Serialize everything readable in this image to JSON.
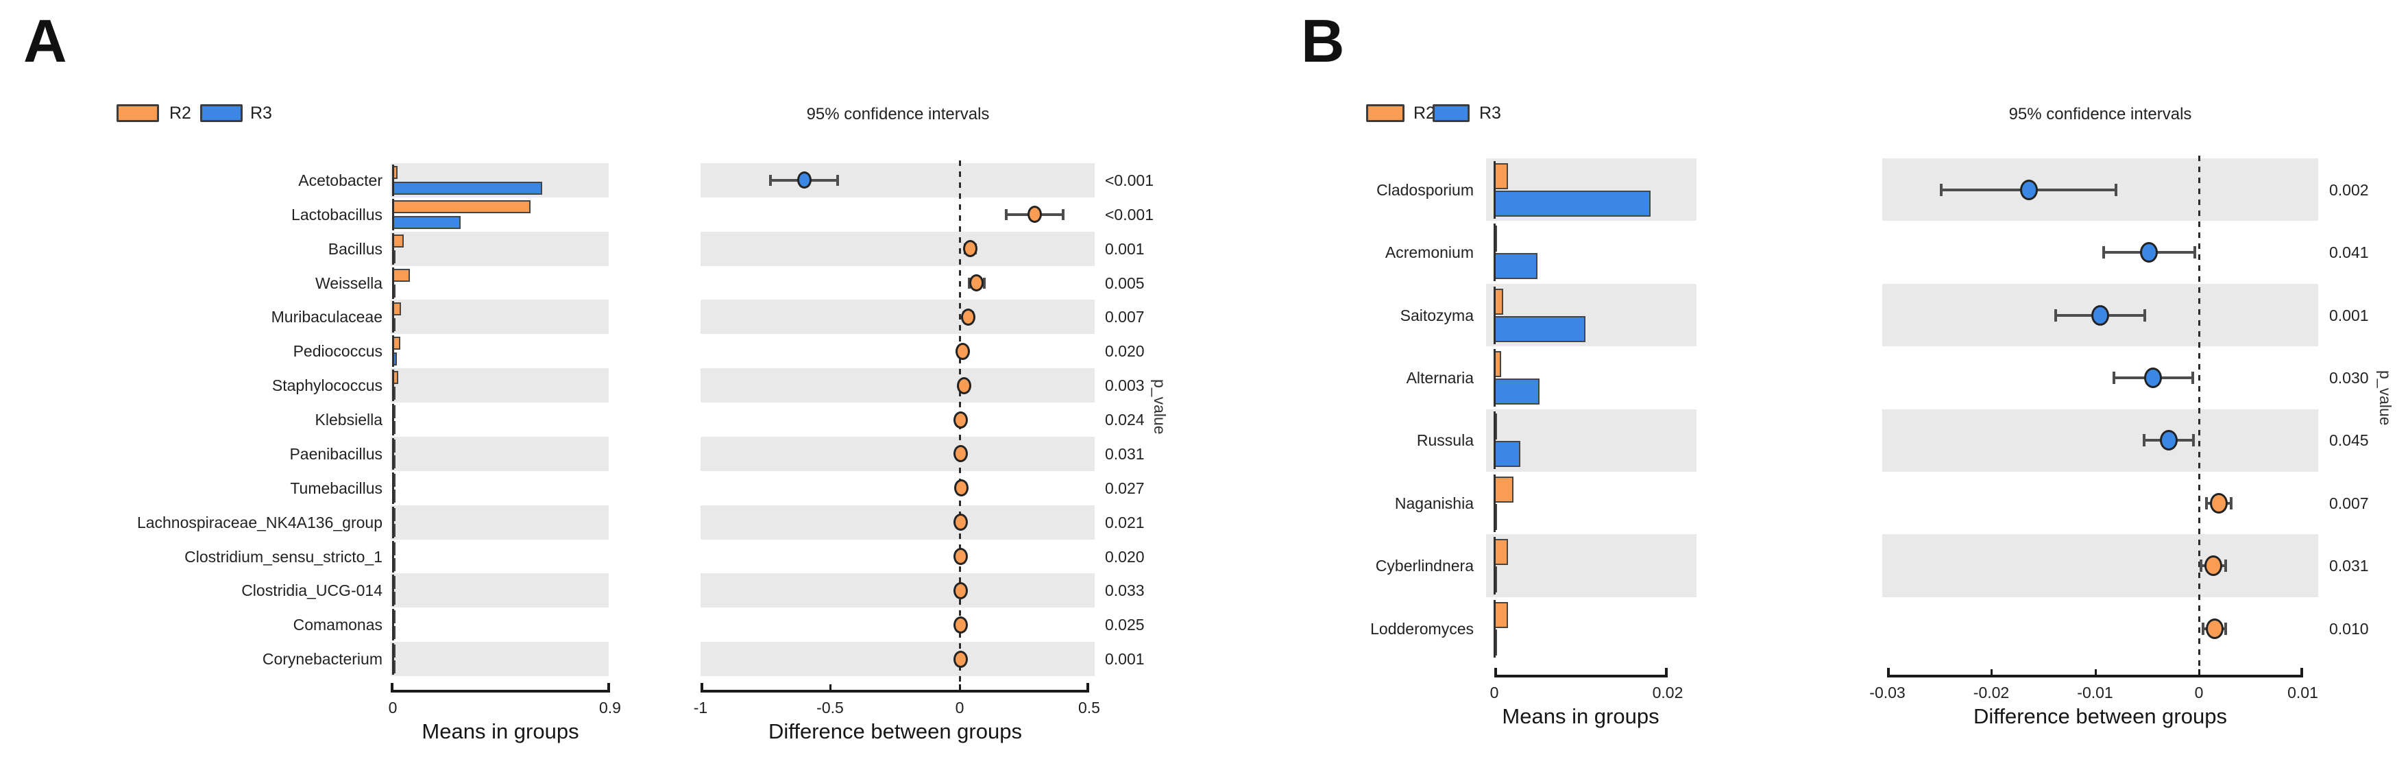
{
  "colors": {
    "r2_orange": "#F99C54",
    "r3_blue": "#3B87E4",
    "stripe_gray": "#E9E9E9",
    "whisker_gray": "#4D4D4D",
    "axis_black": "#1A1A1A"
  },
  "chart_data": [
    {
      "label": "A",
      "type": "bar",
      "description": "Extended error bar plot: group mean bars plus difference-between-groups 95% CI dots",
      "legend": [
        {
          "name": "R2",
          "color": "#F99C54"
        },
        {
          "name": "R3",
          "color": "#3B87E4"
        }
      ],
      "ci_title": "95% confidence intervals",
      "means_axis": {
        "label": "Means in groups",
        "min": 0,
        "max": 0.9,
        "ticks": [
          {
            "v": 0,
            "label": "0"
          },
          {
            "v": 0.9,
            "label": "0.9"
          }
        ]
      },
      "diff_axis": {
        "label": "Difference between groups",
        "min": -1,
        "max": 0.5,
        "ticks": [
          {
            "v": -1,
            "label": "-1"
          },
          {
            "v": -0.5,
            "label": "-0.5"
          },
          {
            "v": 0,
            "label": "0"
          },
          {
            "v": 0.5,
            "label": "0.5"
          }
        ]
      },
      "pvalue_axis_label": "p_value",
      "rows": [
        {
          "taxon": "Acetobacter",
          "r2_mean": 0.02,
          "r3_mean": 0.62,
          "diff": -0.6,
          "ci": [
            -0.73,
            -0.47
          ],
          "dot_group": "R3",
          "p_value": "<0.001"
        },
        {
          "taxon": "Lactobacillus",
          "r2_mean": 0.57,
          "r3_mean": 0.28,
          "diff": 0.29,
          "ci": [
            0.18,
            0.4
          ],
          "dot_group": "R2",
          "p_value": "<0.001"
        },
        {
          "taxon": "Bacillus",
          "r2_mean": 0.045,
          "r3_mean": 0.004,
          "diff": 0.041,
          "ci": [
            0.022,
            0.06
          ],
          "dot_group": "R2",
          "p_value": "0.001"
        },
        {
          "taxon": "Weissella",
          "r2_mean": 0.07,
          "r3_mean": 0.004,
          "diff": 0.066,
          "ci": [
            0.036,
            0.096
          ],
          "dot_group": "R2",
          "p_value": "0.005"
        },
        {
          "taxon": "Muribaculaceae",
          "r2_mean": 0.035,
          "r3_mean": 0.003,
          "diff": 0.032,
          "ci": [
            0.015,
            0.049
          ],
          "dot_group": "R2",
          "p_value": "0.007"
        },
        {
          "taxon": "Pediococcus",
          "r2_mean": 0.03,
          "r3_mean": 0.018,
          "diff": 0.012,
          "ci": [
            0.004,
            0.02
          ],
          "dot_group": "R2",
          "p_value": "0.020"
        },
        {
          "taxon": "Staphylococcus",
          "r2_mean": 0.022,
          "r3_mean": 0.004,
          "diff": 0.018,
          "ci": [
            0.007,
            0.029
          ],
          "dot_group": "R2",
          "p_value": "0.003"
        },
        {
          "taxon": "Klebsiella",
          "r2_mean": 0.007,
          "r3_mean": 0.002,
          "diff": 0.005,
          "ci": [
            0.001,
            0.009
          ],
          "dot_group": "R2",
          "p_value": "0.024"
        },
        {
          "taxon": "Paenibacillus",
          "r2_mean": 0.007,
          "r3_mean": 0.002,
          "diff": 0.005,
          "ci": [
            0.001,
            0.009
          ],
          "dot_group": "R2",
          "p_value": "0.031"
        },
        {
          "taxon": "Tumebacillus",
          "r2_mean": 0.009,
          "r3_mean": 0.002,
          "diff": 0.007,
          "ci": [
            0.002,
            0.012
          ],
          "dot_group": "R2",
          "p_value": "0.027"
        },
        {
          "taxon": "Lachnospiraceae_NK4A136_group",
          "r2_mean": 0.005,
          "r3_mean": 0.001,
          "diff": 0.004,
          "ci": [
            0.001,
            0.007
          ],
          "dot_group": "R2",
          "p_value": "0.021"
        },
        {
          "taxon": "Clostridium_sensu_stricto_1",
          "r2_mean": 0.005,
          "r3_mean": 0.001,
          "diff": 0.004,
          "ci": [
            0.001,
            0.007
          ],
          "dot_group": "R2",
          "p_value": "0.020"
        },
        {
          "taxon": "Clostridia_UCG-014",
          "r2_mean": 0.004,
          "r3_mean": 0.001,
          "diff": 0.003,
          "ci": [
            0.0,
            0.006
          ],
          "dot_group": "R2",
          "p_value": "0.033"
        },
        {
          "taxon": "Comamonas",
          "r2_mean": 0.004,
          "r3_mean": 0.001,
          "diff": 0.003,
          "ci": [
            0.0,
            0.006
          ],
          "dot_group": "R2",
          "p_value": "0.025"
        },
        {
          "taxon": "Corynebacterium",
          "r2_mean": 0.004,
          "r3_mean": 0.001,
          "diff": 0.003,
          "ci": [
            0.0,
            0.006
          ],
          "dot_group": "R2",
          "p_value": "0.001"
        }
      ]
    },
    {
      "label": "B",
      "type": "bar",
      "description": "Extended error bar plot: group mean bars plus difference-between-groups 95% CI dots",
      "legend": [
        {
          "name": "R2",
          "color": "#F99C54"
        },
        {
          "name": "R3",
          "color": "#3B87E4"
        }
      ],
      "ci_title": "95% confidence intervals",
      "means_axis": {
        "label": "Means in groups",
        "min": 0,
        "max": 0.02,
        "ticks": [
          {
            "v": 0,
            "label": "0"
          },
          {
            "v": 0.02,
            "label": "0.02"
          }
        ]
      },
      "diff_axis": {
        "label": "Difference between groups",
        "min": -0.03,
        "max": 0.01,
        "ticks": [
          {
            "v": -0.03,
            "label": "-0.03"
          },
          {
            "v": -0.02,
            "label": "-0.02"
          },
          {
            "v": -0.01,
            "label": "-0.01"
          },
          {
            "v": 0,
            "label": "0"
          },
          {
            "v": 0.01,
            "label": "0.01"
          }
        ]
      },
      "pvalue_axis_label": "p_value",
      "rows": [
        {
          "taxon": "Cladosporium",
          "r2_mean": 0.0016,
          "r3_mean": 0.018,
          "diff": -0.0164,
          "ci": [
            -0.0248,
            -0.008
          ],
          "dot_group": "R3",
          "p_value": "0.002"
        },
        {
          "taxon": "Acremonium",
          "r2_mean": 0.0002,
          "r3_mean": 0.005,
          "diff": -0.0048,
          "ci": [
            -0.0092,
            -0.0004
          ],
          "dot_group": "R3",
          "p_value": "0.041"
        },
        {
          "taxon": "Saitozyma",
          "r2_mean": 0.001,
          "r3_mean": 0.0105,
          "diff": -0.0095,
          "ci": [
            -0.0138,
            -0.0052
          ],
          "dot_group": "R3",
          "p_value": "0.001"
        },
        {
          "taxon": "Alternaria",
          "r2_mean": 0.0008,
          "r3_mean": 0.0052,
          "diff": -0.0044,
          "ci": [
            -0.0082,
            -0.0006
          ],
          "dot_group": "R3",
          "p_value": "0.030"
        },
        {
          "taxon": "Russula",
          "r2_mean": 0.0001,
          "r3_mean": 0.003,
          "diff": -0.0029,
          "ci": [
            -0.0053,
            -0.0005
          ],
          "dot_group": "R3",
          "p_value": "0.045"
        },
        {
          "taxon": "Naganishia",
          "r2_mean": 0.0022,
          "r3_mean": 0.0003,
          "diff": 0.0019,
          "ci": [
            0.0007,
            0.0031
          ],
          "dot_group": "R2",
          "p_value": "0.007"
        },
        {
          "taxon": "Cyberlindnera",
          "r2_mean": 0.0016,
          "r3_mean": 0.0002,
          "diff": 0.0014,
          "ci": [
            0.0002,
            0.0026
          ],
          "dot_group": "R2",
          "p_value": "0.031"
        },
        {
          "taxon": "Lodderomyces",
          "r2_mean": 0.0016,
          "r3_mean": 0.0001,
          "diff": 0.0015,
          "ci": [
            0.0004,
            0.0026
          ],
          "dot_group": "R2",
          "p_value": "0.010"
        }
      ]
    }
  ]
}
